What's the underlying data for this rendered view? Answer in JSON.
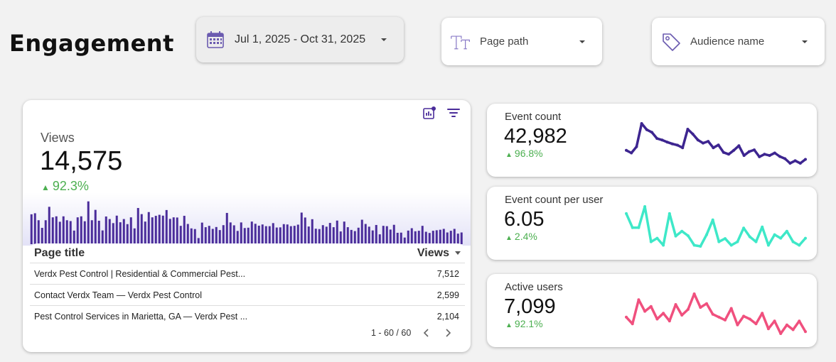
{
  "page": {
    "title": "Engagement"
  },
  "filters": {
    "date_range": {
      "label": "Jul 1, 2025 - Oct 31, 2025",
      "icon": "calendar-icon"
    },
    "page_path": {
      "label": "Page path",
      "icon": "text-type-icon"
    },
    "audience": {
      "label": "Audience name",
      "icon": "tag-icon"
    }
  },
  "views_card": {
    "label": "Views",
    "value": "14,575",
    "delta": "92.3%",
    "colors": {
      "bar": "#4a2c9a",
      "bar_prev": "#c8c8c8",
      "up": "#4caf50"
    },
    "table": {
      "columns": [
        "Page title",
        "Views"
      ],
      "rows": [
        {
          "title": "Verdx Pest Control | Residential & Commercial Pest...",
          "views": "7,512"
        },
        {
          "title": "Contact Verdx Team — Verdx Pest Control",
          "views": "2,599"
        },
        {
          "title": "Pest Control Services in Marietta, GA — Verdx Pest ...",
          "views": "2,104"
        }
      ],
      "pagination": "1 - 60 / 60"
    }
  },
  "kpis": [
    {
      "label": "Event count",
      "value": "42,982",
      "delta": "96.8%",
      "color": "#3d2590"
    },
    {
      "label": "Event count per user",
      "value": "6.05",
      "delta": "2.4%",
      "color": "#3ee8c8"
    },
    {
      "label": "Active users",
      "value": "7,099",
      "delta": "92.1%",
      "color": "#f0507e"
    }
  ],
  "chart_data": [
    {
      "type": "bar",
      "series": [
        {
          "name": "Views",
          "values": [
            176,
            182,
            141,
            96,
            141,
            220,
            158,
            164,
            132,
            164,
            141,
            136,
            80,
            158,
            164,
            135,
            252,
            141,
            202,
            138,
            81,
            163,
            148,
            124,
            168,
            129,
            148,
            118,
            158,
            93,
            213,
            177,
            133,
            189,
            158,
            167,
            173,
            168,
            201,
            149,
            158,
            157,
            108,
            167,
            119,
            93,
            89,
            36,
            127,
            100,
            108,
            90,
            101,
            83,
            112,
            184,
            128,
            111,
            78,
            128,
            95,
            97,
            133,
            120,
            109,
            116,
            106,
            106,
            124,
            98,
            99,
            118,
            116,
            106,
            108,
            115,
            186,
            157,
            104,
            147,
            91,
            89,
            112,
            103,
            125,
            100,
            139,
            75,
            133,
            100,
            84,
            77,
            97,
            144,
            119,
            103,
            81,
            113,
            58,
            108,
            106,
            86,
            114,
            67,
            68,
            39,
            80,
            94,
            76,
            79,
            108,
            73,
            66,
            79,
            82,
            85,
            90,
            69,
            79,
            90,
            62,
            69
          ]
        }
      ],
      "ylim": [
        0,
        280
      ]
    },
    {
      "type": "line",
      "series": [
        {
          "name": "Event count",
          "values": [
            520,
            510,
            534,
            624,
            600,
            590,
            566,
            560,
            552,
            545,
            540,
            530,
            602,
            583,
            560,
            548,
            555,
            530,
            541,
            512,
            505,
            520,
            538,
            500,
            515,
            522,
            495,
            505,
            500,
            510,
            496,
            488,
            470,
            480,
            470,
            485
          ]
        }
      ]
    },
    {
      "type": "line",
      "series": [
        {
          "name": "Event count per user",
          "values": [
            6.9,
            6.5,
            6.5,
            7.1,
            6.1,
            6.2,
            6.0,
            6.9,
            6.26,
            6.4,
            6.27,
            6.0,
            5.97,
            6.3,
            6.72,
            6.1,
            6.19,
            6.0,
            6.1,
            6.49,
            6.24,
            6.1,
            6.52,
            6.0,
            6.3,
            6.2,
            6.4,
            6.1,
            6.0,
            6.2
          ]
        }
      ]
    },
    {
      "type": "line",
      "series": [
        {
          "name": "Active users",
          "values": [
            92,
            85,
            110,
            98,
            103,
            90,
            96,
            88,
            105,
            94,
            100,
            116,
            102,
            106,
            95,
            92,
            89,
            101,
            84,
            93,
            90,
            85,
            96,
            80,
            88,
            75,
            84,
            79,
            88,
            77
          ]
        }
      ]
    }
  ]
}
